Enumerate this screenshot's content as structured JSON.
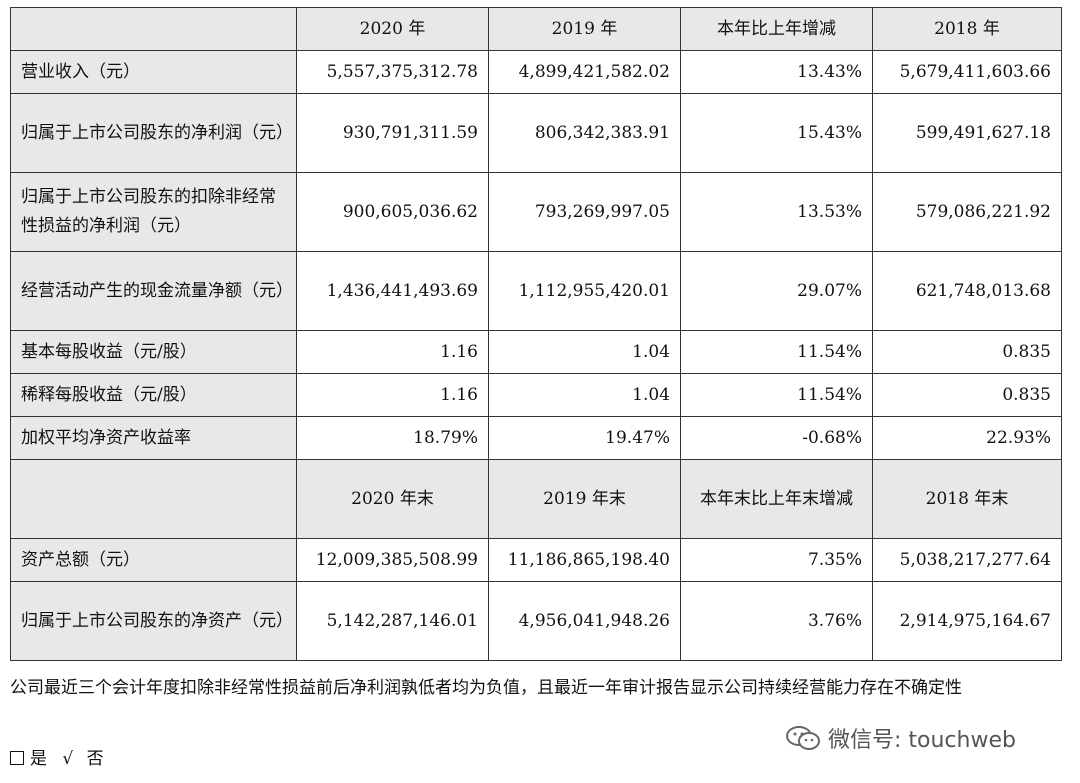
{
  "table": {
    "header1": [
      "2020 年",
      "2019 年",
      "本年比上年增减",
      "2018 年"
    ],
    "rows1": [
      {
        "label": "营业收入（元）",
        "values": [
          "5,557,375,312.78",
          "4,899,421,582.02",
          "13.43%",
          "5,679,411,603.66"
        ]
      },
      {
        "label": "归属于上市公司股东的净利润（元）",
        "values": [
          "930,791,311.59",
          "806,342,383.91",
          "15.43%",
          "599,491,627.18"
        ]
      },
      {
        "label": "归属于上市公司股东的扣除非经常性损益的净利润（元）",
        "values": [
          "900,605,036.62",
          "793,269,997.05",
          "13.53%",
          "579,086,221.92"
        ]
      },
      {
        "label": "经营活动产生的现金流量净额（元）",
        "values": [
          "1,436,441,493.69",
          "1,112,955,420.01",
          "29.07%",
          "621,748,013.68"
        ]
      },
      {
        "label": "基本每股收益（元/股）",
        "values": [
          "1.16",
          "1.04",
          "11.54%",
          "0.835"
        ]
      },
      {
        "label": "稀释每股收益（元/股）",
        "values": [
          "1.16",
          "1.04",
          "11.54%",
          "0.835"
        ]
      },
      {
        "label": "加权平均净资产收益率",
        "values": [
          "18.79%",
          "19.47%",
          "-0.68%",
          "22.93%"
        ]
      }
    ],
    "header2": [
      "2020 年末",
      "2019 年末",
      "本年末比上年末增减",
      "2018 年末"
    ],
    "rows2": [
      {
        "label": "资产总额（元）",
        "values": [
          "12,009,385,508.99",
          "11,186,865,198.40",
          "7.35%",
          "5,038,217,277.64"
        ]
      },
      {
        "label": "归属于上市公司股东的净资产（元）",
        "values": [
          "5,142,287,146.01",
          "4,956,041,948.26",
          "3.76%",
          "2,914,975,164.67"
        ]
      }
    ]
  },
  "footer_text": "公司最近三个会计年度扣除非经常性损益前后净利润孰低者均为负值，且最近一年审计报告显示公司持续经营能力存在不确定性",
  "choice": {
    "yes_label": "是",
    "check_mark": "√",
    "no_label": "否"
  },
  "watermark": "微信号: touchweb"
}
